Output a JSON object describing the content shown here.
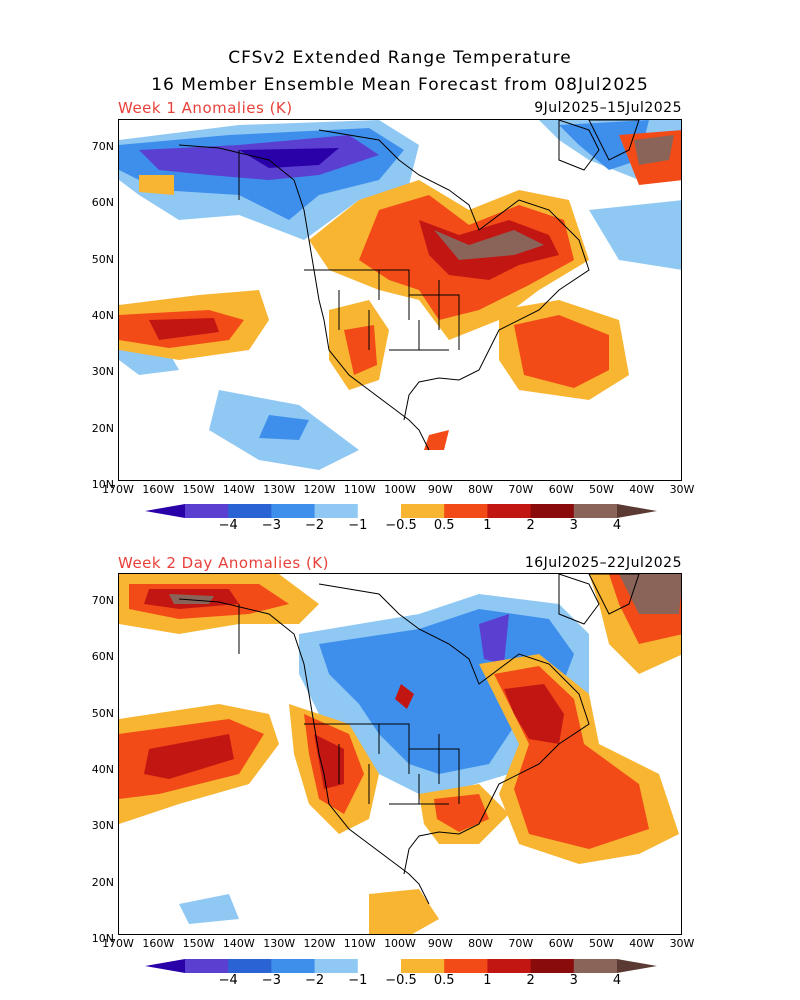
{
  "title_line1": "CFSv2 Extended Range Temperature",
  "title_line2": "16 Member Ensemble Mean Forecast from 08Jul2025",
  "panel1": {
    "label": "Week 1 Anomalies (K)",
    "dates": "9Jul2025–15Jul2025"
  },
  "panel2": {
    "label": "Week 2 Day Anomalies (K)",
    "dates": "16Jul2025–22Jul2025"
  },
  "lat_labels": [
    "70N",
    "60N",
    "50N",
    "40N",
    "30N",
    "20N",
    "10N"
  ],
  "lon_labels": [
    "170W",
    "160W",
    "150W",
    "140W",
    "130W",
    "120W",
    "110W",
    "100W",
    "90W",
    "80W",
    "70W",
    "60W",
    "50W",
    "40W",
    "30W"
  ],
  "colorbar": {
    "labels": [
      "−4",
      "−3",
      "−2",
      "−1",
      "−0.5",
      "0.5",
      "1",
      "2",
      "3",
      "4"
    ],
    "colors": [
      "#2a00a8",
      "#5a3fd1",
      "#2a63d4",
      "#3e8fec",
      "#90c8f4",
      "#ffffff",
      "#f7b532",
      "#f24b17",
      "#c21612",
      "#8a0b0b",
      "#8a6359",
      "#5a3a33"
    ]
  }
}
